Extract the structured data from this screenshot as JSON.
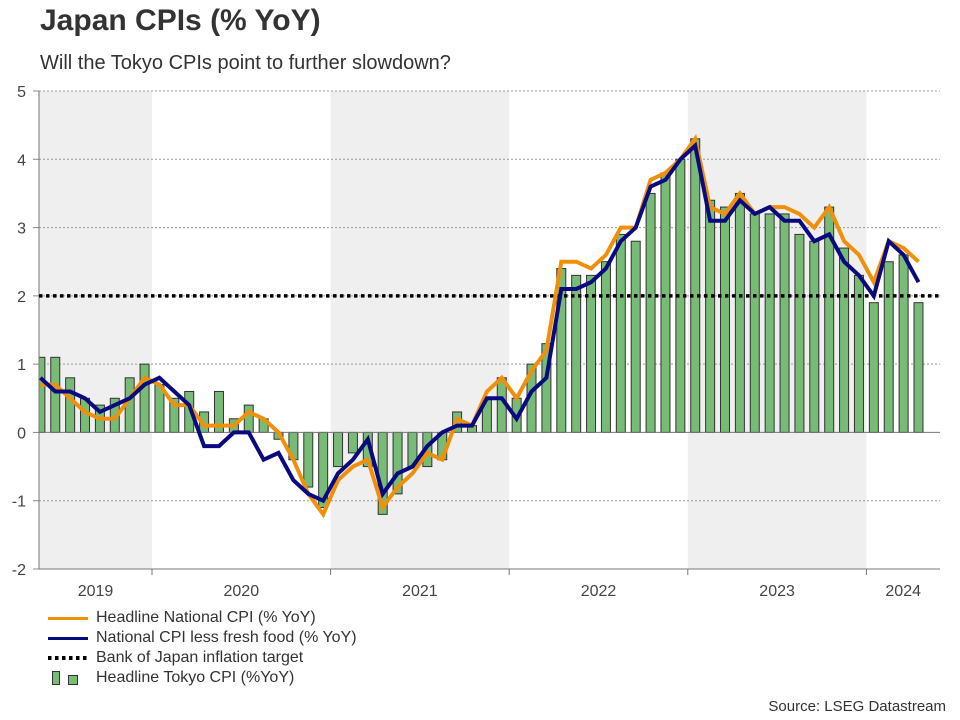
{
  "header": {
    "title": "Japan CPIs (% YoY)",
    "subtitle": "Will the Tokyo CPIs point to further slowdown?"
  },
  "legend": [
    {
      "label": "Headline National CPI (% YoY)",
      "type": "line",
      "color": "#f0900a"
    },
    {
      "label": "National CPI less fresh food (% YoY)",
      "type": "line",
      "color": "#0a0a80"
    },
    {
      "label": "Bank of Japan inflation target",
      "type": "dotted",
      "color": "#000000"
    },
    {
      "label": "Headline Tokyo CPI (%YoY)",
      "type": "bar",
      "color": "#77bb77"
    }
  ],
  "source": "Source: LSEG Datastream",
  "chart_data": {
    "type": "bar+line",
    "title": "Japan CPIs (% YoY)",
    "subtitle": "Will the Tokyo CPIs point to further slowdown?",
    "xlabel": "",
    "ylabel": "",
    "ylim": [
      -2,
      5
    ],
    "yticks": [
      "-2",
      "-1",
      "0",
      "1",
      "2",
      "3",
      "4",
      "5"
    ],
    "xticks": [
      "2019",
      "2020",
      "2021",
      "2022",
      "2023",
      "2024"
    ],
    "shaded_years": [
      "2019",
      "2021",
      "2023"
    ],
    "grid": true,
    "legend_position": "bottom-left",
    "x": [
      "2019-05",
      "2019-06",
      "2019-07",
      "2019-08",
      "2019-09",
      "2019-10",
      "2019-11",
      "2019-12",
      "2020-01",
      "2020-02",
      "2020-03",
      "2020-04",
      "2020-05",
      "2020-06",
      "2020-07",
      "2020-08",
      "2020-09",
      "2020-10",
      "2020-11",
      "2020-12",
      "2021-01",
      "2021-02",
      "2021-03",
      "2021-04",
      "2021-05",
      "2021-06",
      "2021-07",
      "2021-08",
      "2021-09",
      "2021-10",
      "2021-11",
      "2021-12",
      "2022-01",
      "2022-02",
      "2022-03",
      "2022-04",
      "2022-05",
      "2022-06",
      "2022-07",
      "2022-08",
      "2022-09",
      "2022-10",
      "2022-11",
      "2022-12",
      "2023-01",
      "2023-02",
      "2023-03",
      "2023-04",
      "2023-05",
      "2023-06",
      "2023-07",
      "2023-08",
      "2023-09",
      "2023-10",
      "2023-11",
      "2023-12",
      "2024-01",
      "2024-02",
      "2024-03",
      "2024-04"
    ],
    "series": [
      {
        "name": "Headline National CPI (% YoY)",
        "type": "line",
        "color": "#f0900a",
        "values": [
          0.7,
          0.7,
          0.5,
          0.3,
          0.2,
          0.2,
          0.5,
          0.8,
          0.7,
          0.4,
          0.4,
          0.1,
          0.1,
          0.1,
          0.3,
          0.2,
          0.0,
          -0.4,
          -0.9,
          -1.2,
          -0.7,
          -0.5,
          -0.4,
          -1.1,
          -0.8,
          -0.6,
          -0.3,
          -0.4,
          0.2,
          0.1,
          0.6,
          0.8,
          0.5,
          0.9,
          1.2,
          2.5,
          2.5,
          2.4,
          2.6,
          3.0,
          3.0,
          3.7,
          3.8,
          4.0,
          4.3,
          3.3,
          3.2,
          3.5,
          3.2,
          3.3,
          3.3,
          3.2,
          3.0,
          3.3,
          2.8,
          2.6,
          2.2,
          2.8,
          2.7,
          2.5
        ]
      },
      {
        "name": "National CPI less fresh food (% YoY)",
        "type": "line",
        "color": "#0a0a80",
        "values": [
          0.8,
          0.6,
          0.6,
          0.5,
          0.3,
          0.4,
          0.5,
          0.7,
          0.8,
          0.6,
          0.4,
          -0.2,
          -0.2,
          0.0,
          0.0,
          -0.4,
          -0.3,
          -0.7,
          -0.9,
          -1.0,
          -0.6,
          -0.4,
          -0.1,
          -0.9,
          -0.6,
          -0.5,
          -0.2,
          0.0,
          0.1,
          0.1,
          0.5,
          0.5,
          0.2,
          0.6,
          0.8,
          2.1,
          2.1,
          2.2,
          2.4,
          2.8,
          3.0,
          3.6,
          3.7,
          4.0,
          4.2,
          3.1,
          3.1,
          3.4,
          3.2,
          3.3,
          3.1,
          3.1,
          2.8,
          2.9,
          2.5,
          2.3,
          2.0,
          2.8,
          2.6,
          2.2
        ]
      },
      {
        "name": "Headline Tokyo CPI (%YoY)",
        "type": "bar",
        "color": "#77bb77",
        "values": [
          1.1,
          1.1,
          0.8,
          0.5,
          0.4,
          0.5,
          0.8,
          1.0,
          0.7,
          0.5,
          0.6,
          0.3,
          0.6,
          0.2,
          0.4,
          0.2,
          -0.1,
          -0.4,
          -0.8,
          -1.1,
          -0.5,
          -0.3,
          -0.5,
          -1.2,
          -0.9,
          -0.5,
          -0.5,
          -0.4,
          0.3,
          0.1,
          0.5,
          0.8,
          0.5,
          1.0,
          1.3,
          2.4,
          2.3,
          2.3,
          2.5,
          2.9,
          2.8,
          3.5,
          3.8,
          4.0,
          4.3,
          3.4,
          3.3,
          3.5,
          3.2,
          3.2,
          3.2,
          2.9,
          2.8,
          3.3,
          2.7,
          2.3,
          1.9,
          2.5,
          2.6,
          1.9
        ]
      },
      {
        "name": "Bank of Japan inflation target",
        "type": "hline",
        "color": "#000000",
        "value": 2.0
      }
    ]
  }
}
